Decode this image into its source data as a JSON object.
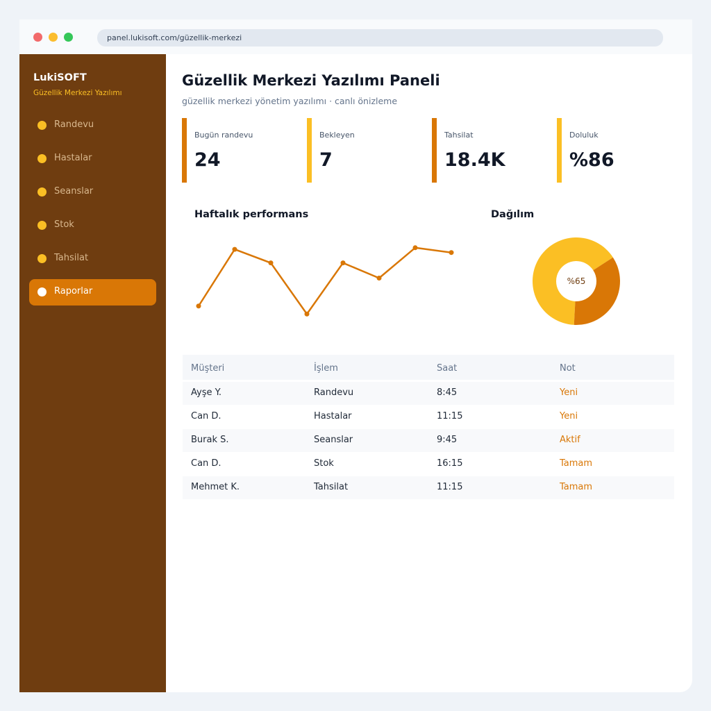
{
  "browser": {
    "url": "panel.lukisoft.com/güzellik-merkezi"
  },
  "sidebar": {
    "brand": "LukiSOFT",
    "brand_sub": "Güzellik Merkezi Yazılımı",
    "items": [
      {
        "label": "Randevu",
        "active": false
      },
      {
        "label": "Hastalar",
        "active": false
      },
      {
        "label": "Seanslar",
        "active": false
      },
      {
        "label": "Stok",
        "active": false
      },
      {
        "label": "Tahsilat",
        "active": false
      },
      {
        "label": "Raporlar",
        "active": true
      }
    ]
  },
  "header": {
    "title": "Güzellik Merkezi Yazılımı Paneli",
    "subtitle": "güzellik merkezi yönetim yazılımı · canlı önizleme"
  },
  "stats": [
    {
      "label": "Bugün randevu",
      "value": "24",
      "color": "#d97706"
    },
    {
      "label": "Bekleyen",
      "value": "7",
      "color": "#fbbf24"
    },
    {
      "label": "Tahsilat",
      "value": "18.4K",
      "color": "#d97706"
    },
    {
      "label": "Doluluk",
      "value": "%86",
      "color": "#fbbf24"
    }
  ],
  "charts": {
    "line_title": "Haftalık performans",
    "donut_title": "Dağılım"
  },
  "chart_data": [
    {
      "type": "line",
      "title": "Haftalık performans",
      "x": [
        1,
        2,
        3,
        4,
        5,
        6,
        7,
        8
      ],
      "values": [
        15,
        86,
        69,
        5,
        69,
        50,
        88,
        82
      ],
      "ylim": [
        0,
        100
      ],
      "color": "#d97706",
      "grid": false
    },
    {
      "type": "pie",
      "title": "Dağılım",
      "center_label": "%65",
      "values": [
        65,
        35
      ],
      "colors": [
        "#fbbf24",
        "#d97706"
      ]
    }
  ],
  "table": {
    "headers": [
      "Müşteri",
      "İşlem",
      "Saat",
      "Not"
    ],
    "rows": [
      [
        "Ayşe Y.",
        "Randevu",
        "8:45",
        "Yeni"
      ],
      [
        "Can D.",
        "Hastalar",
        "11:15",
        "Yeni"
      ],
      [
        "Burak S.",
        "Seanslar",
        "9:45",
        "Aktif"
      ],
      [
        "Can D.",
        "Stok",
        "16:15",
        "Tamam"
      ],
      [
        "Mehmet K.",
        "Tahsilat",
        "11:15",
        "Tamam"
      ]
    ]
  },
  "colors": {
    "accent": "#d97706",
    "accent_light": "#fbbf24",
    "sidebar": "#6f3d10"
  }
}
